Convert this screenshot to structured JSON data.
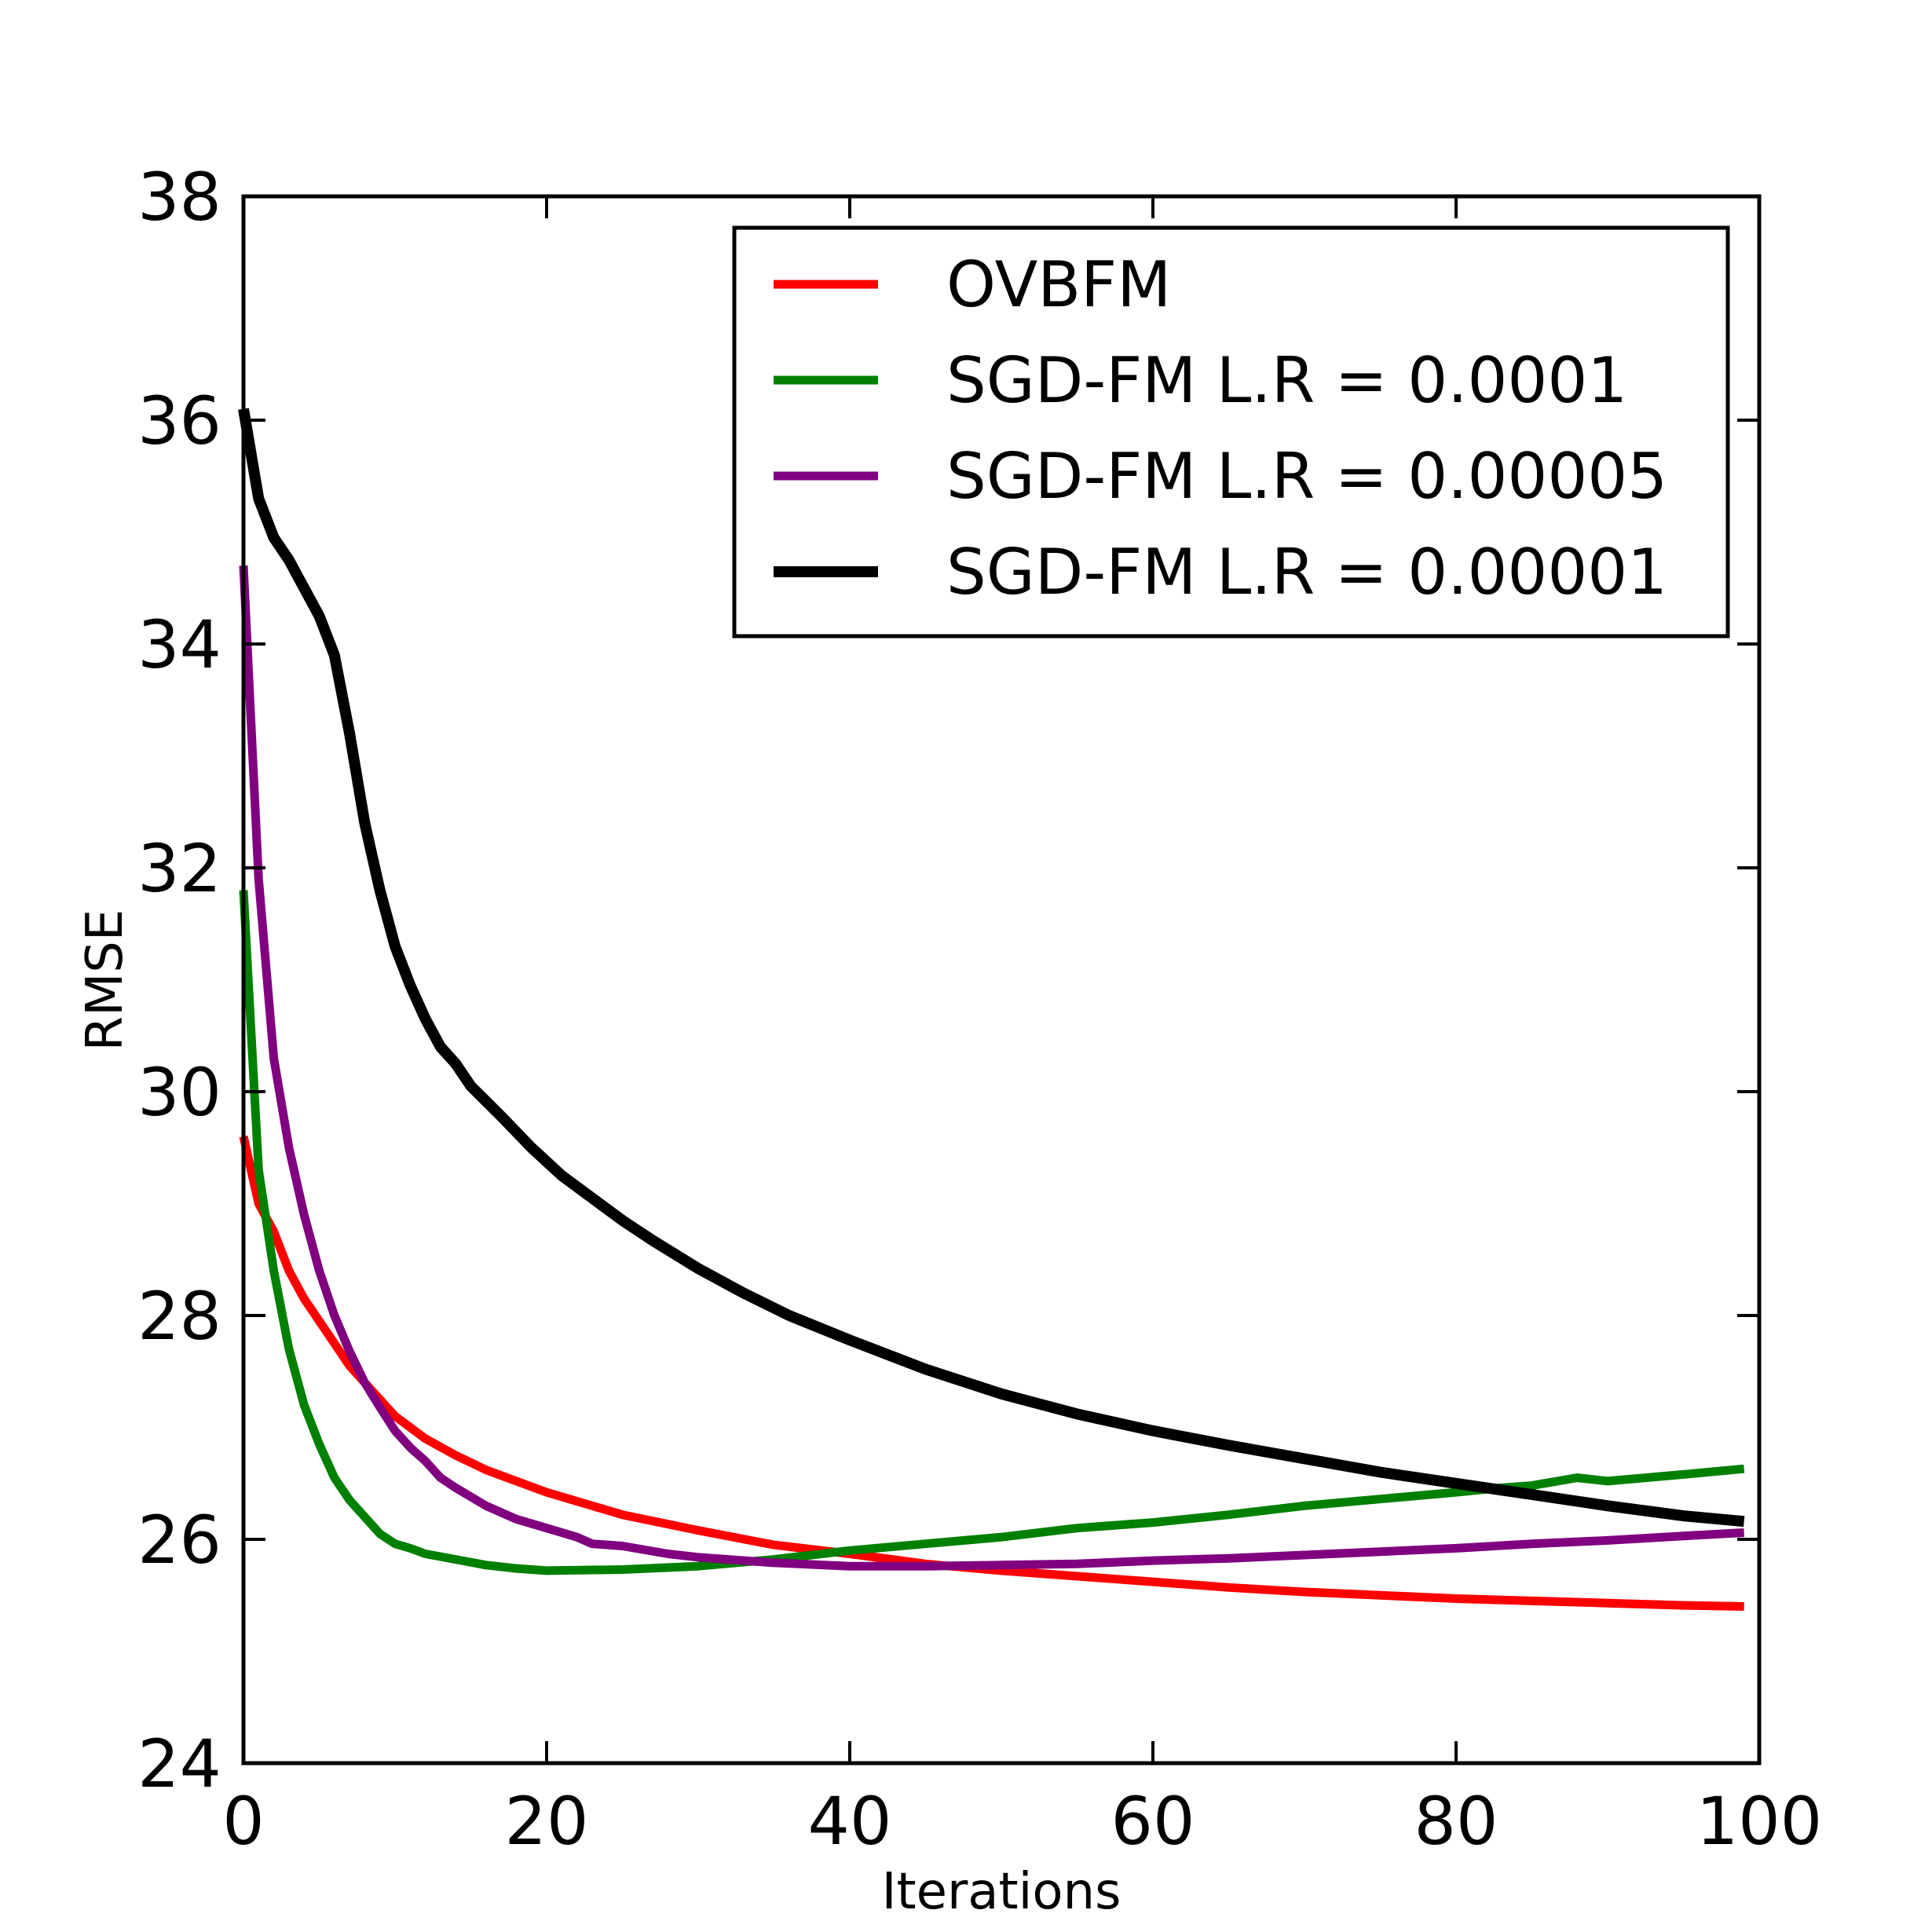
{
  "chart_data": {
    "type": "line",
    "xlabel": "Iterations",
    "ylabel": "RMSE",
    "xlim": [
      0,
      100
    ],
    "ylim": [
      24,
      38
    ],
    "xticks": [
      "0",
      "20",
      "40",
      "60",
      "80",
      "100"
    ],
    "yticks": [
      "24",
      "26",
      "28",
      "30",
      "32",
      "34",
      "36",
      "38"
    ],
    "legend_position": "top-right",
    "grid": false,
    "series": [
      {
        "name": "OVBFM",
        "color": "#ff0000",
        "x": [
          0,
          1,
          2,
          3,
          4,
          5,
          6,
          7,
          8,
          9,
          10,
          12,
          14,
          16,
          18,
          20,
          25,
          30,
          35,
          40,
          45,
          50,
          55,
          60,
          65,
          70,
          75,
          80,
          85,
          90,
          95,
          99
        ],
        "y": [
          29.6,
          29.0,
          28.75,
          28.4,
          28.15,
          27.95,
          27.75,
          27.55,
          27.4,
          27.25,
          27.1,
          26.9,
          26.75,
          26.62,
          26.52,
          26.42,
          26.22,
          26.08,
          25.95,
          25.87,
          25.78,
          25.72,
          25.67,
          25.62,
          25.57,
          25.53,
          25.5,
          25.47,
          25.45,
          25.43,
          25.41,
          25.4
        ]
      },
      {
        "name": "SGD-FM L.R = 0.0001",
        "color": "#008000",
        "x": [
          0,
          1,
          2,
          3,
          4,
          5,
          6,
          7,
          8,
          9,
          10,
          11,
          12,
          14,
          16,
          18,
          20,
          25,
          30,
          35,
          40,
          45,
          50,
          55,
          60,
          65,
          70,
          75,
          80,
          83,
          85,
          88,
          90,
          95,
          99
        ],
        "y": [
          31.8,
          29.3,
          28.4,
          27.7,
          27.2,
          26.85,
          26.55,
          26.35,
          26.2,
          26.05,
          25.96,
          25.92,
          25.87,
          25.82,
          25.77,
          25.74,
          25.72,
          25.73,
          25.76,
          25.82,
          25.9,
          25.96,
          26.02,
          26.1,
          26.15,
          26.22,
          26.3,
          26.36,
          26.42,
          26.46,
          26.48,
          26.55,
          26.52,
          26.58,
          26.63
        ]
      },
      {
        "name": "SGD-FM L.R = 0.00005",
        "color": "#800080",
        "x": [
          0,
          1,
          2,
          3,
          4,
          5,
          6,
          7,
          8,
          9,
          10,
          11,
          12,
          13,
          14,
          16,
          18,
          20,
          22,
          23,
          25,
          28,
          30,
          35,
          40,
          45,
          50,
          55,
          60,
          65,
          70,
          75,
          80,
          85,
          90,
          95,
          99
        ],
        "y": [
          34.7,
          31.9,
          30.3,
          29.5,
          28.9,
          28.4,
          28.0,
          27.68,
          27.4,
          27.18,
          26.97,
          26.82,
          26.7,
          26.55,
          26.46,
          26.3,
          26.18,
          26.1,
          26.02,
          25.96,
          25.94,
          25.87,
          25.84,
          25.79,
          25.76,
          25.76,
          25.77,
          25.78,
          25.81,
          25.83,
          25.86,
          25.89,
          25.92,
          25.96,
          25.99,
          26.03,
          26.06
        ]
      },
      {
        "name": "SGD-FM L.R = 0.00001",
        "color": "#000000",
        "x": [
          0,
          1,
          2,
          3,
          4,
          5,
          6,
          7,
          8,
          9,
          10,
          11,
          12,
          13,
          14,
          15,
          17,
          19,
          21,
          23,
          25,
          27,
          30,
          33,
          36,
          40,
          45,
          50,
          55,
          60,
          65,
          70,
          75,
          80,
          85,
          90,
          95,
          99
        ],
        "y": [
          36.1,
          35.3,
          34.95,
          34.75,
          34.5,
          34.25,
          33.9,
          33.2,
          32.4,
          31.8,
          31.3,
          30.95,
          30.65,
          30.4,
          30.25,
          30.05,
          29.78,
          29.5,
          29.25,
          29.05,
          28.85,
          28.67,
          28.42,
          28.2,
          28.0,
          27.78,
          27.52,
          27.3,
          27.12,
          26.97,
          26.84,
          26.72,
          26.6,
          26.5,
          26.4,
          26.3,
          26.21,
          26.16
        ]
      }
    ]
  }
}
